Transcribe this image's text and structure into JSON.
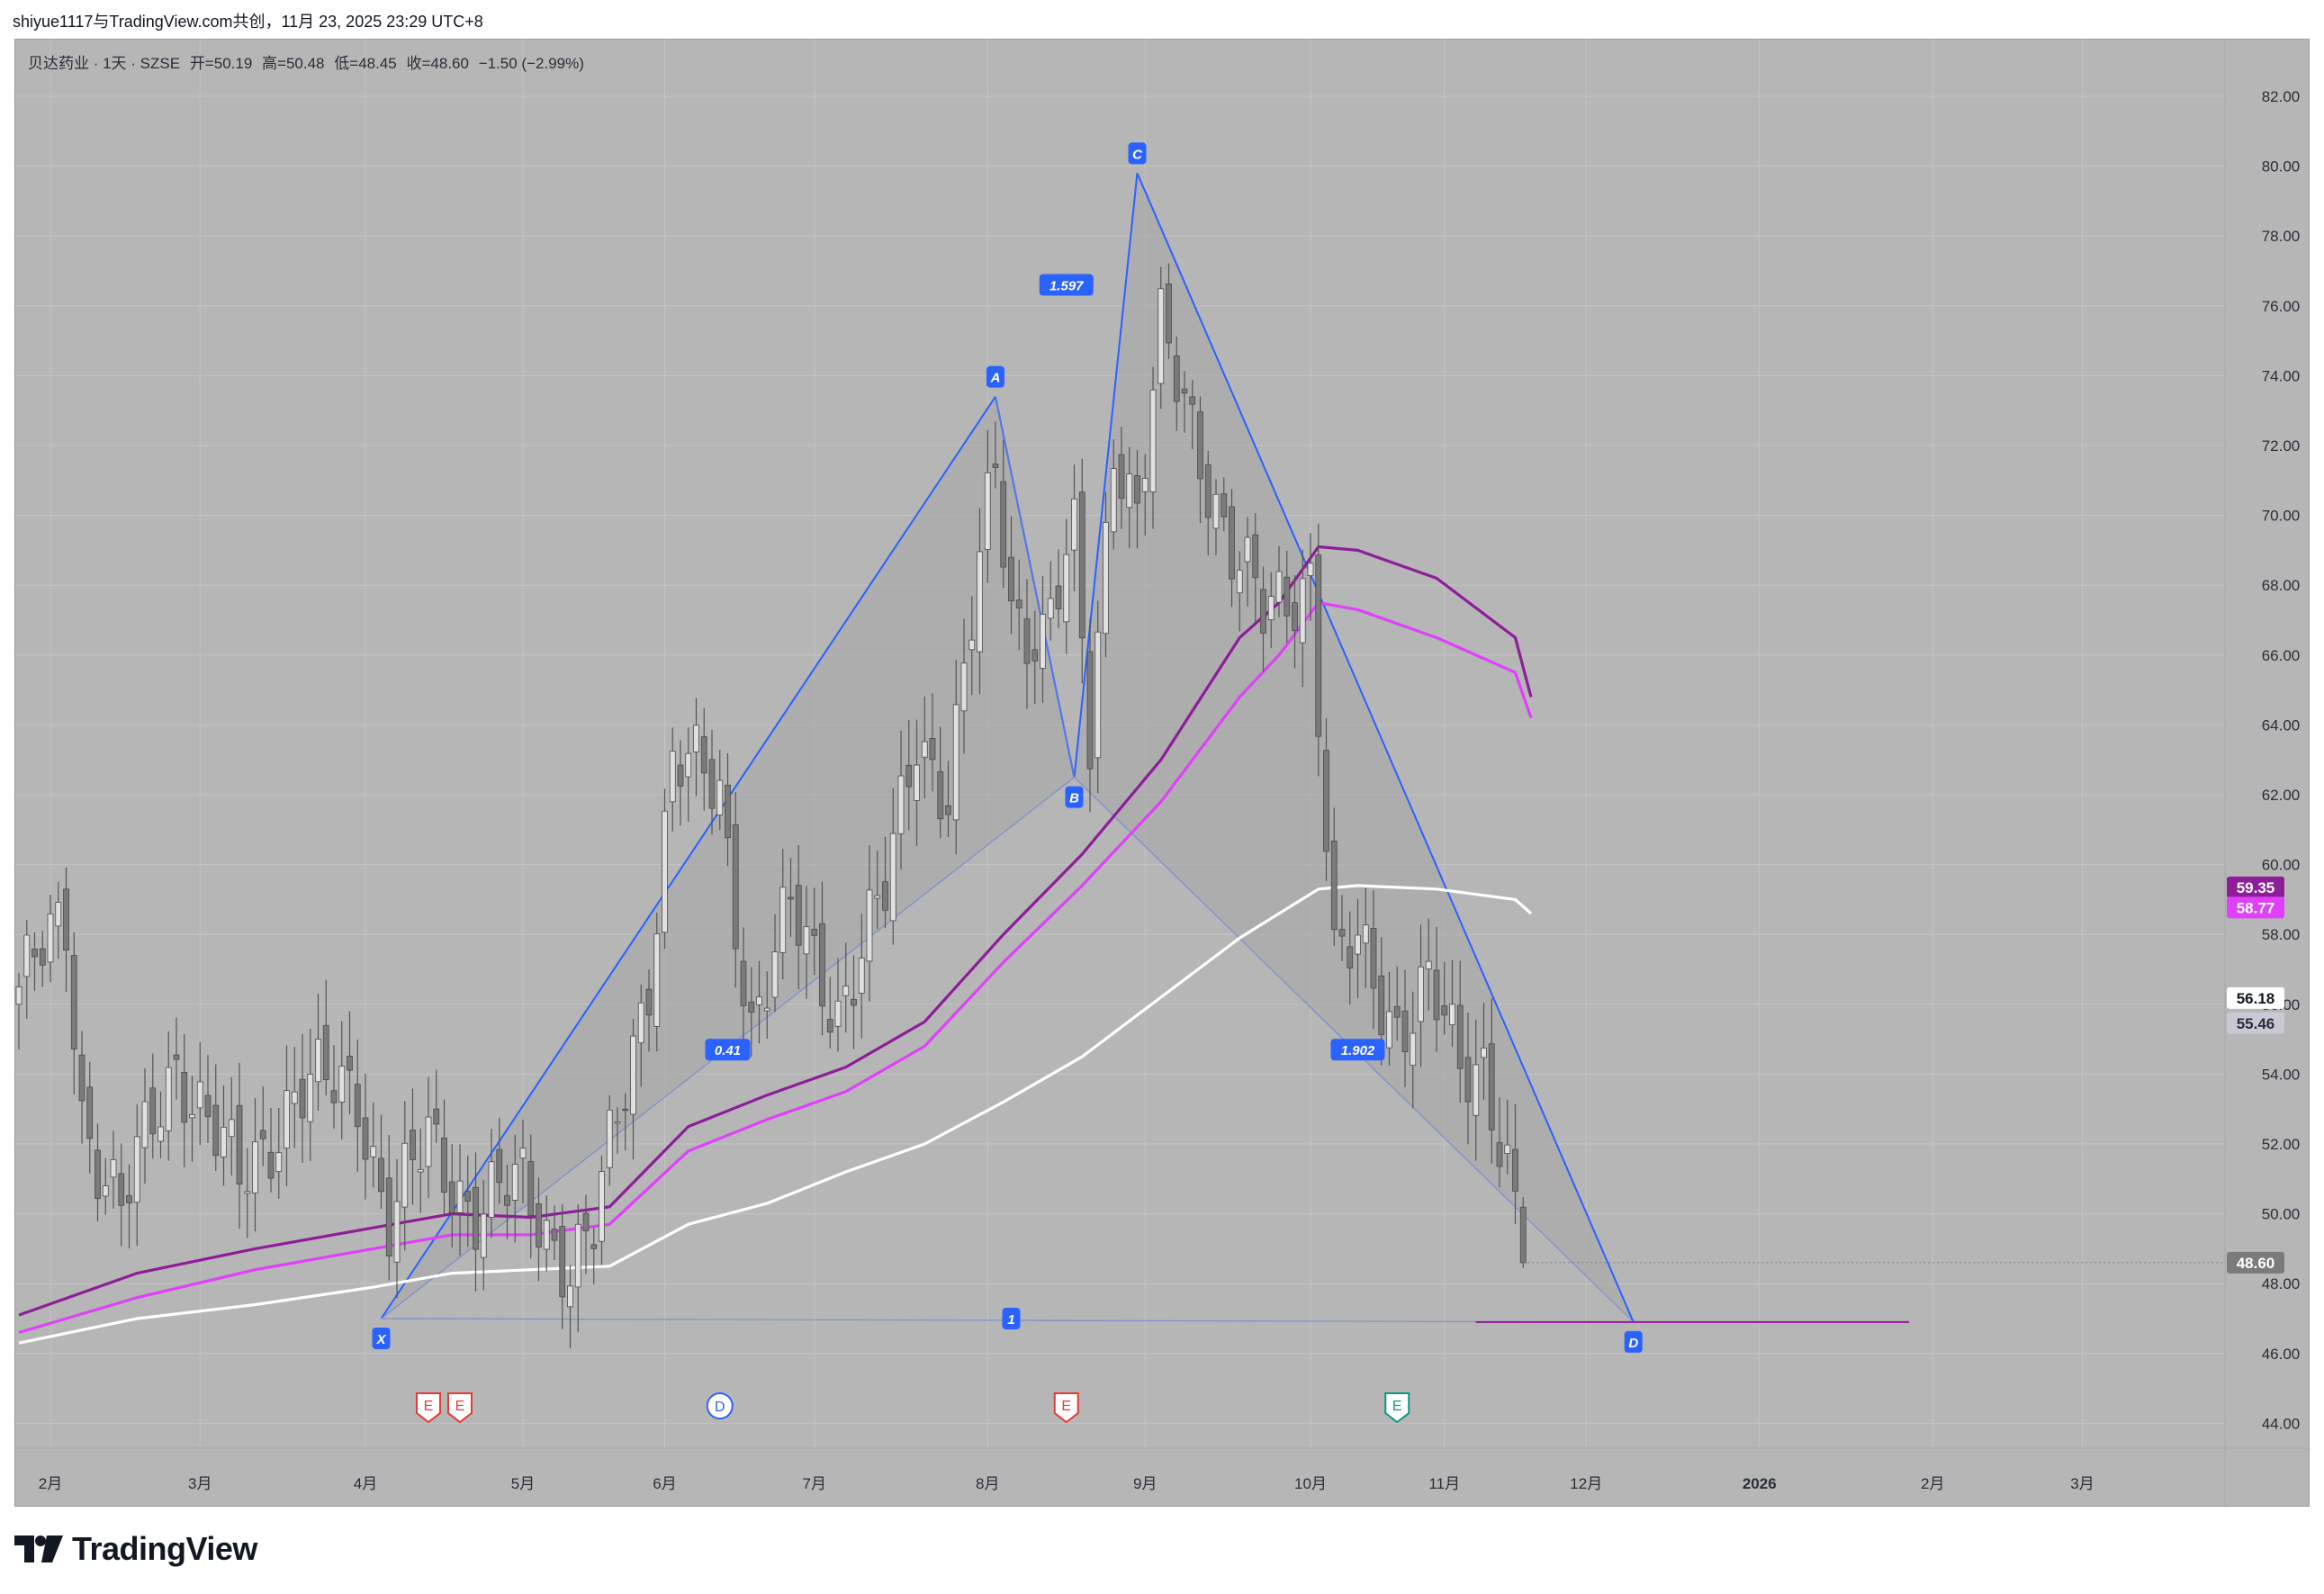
{
  "caption": "shiyue1117与TradingView.com共创，11月 23, 2025 23:29 UTC+8",
  "legend": {
    "symbol": "贝达药业 · 1天 · SZSE",
    "open_label": "开=",
    "open": "50.19",
    "high_label": "高=",
    "high": "50.48",
    "low_label": "低=",
    "low": "48.45",
    "close_label": "收=",
    "close": "48.60",
    "change": "−1.50 (−2.99%)"
  },
  "brand": {
    "name": "TradingView",
    "logo_icon": "tradingview-logo-icon"
  },
  "colors": {
    "background": "#b6b6b6",
    "pattern_line": "#2962ff",
    "pattern_fill": "#a6a6a6",
    "ma_dark": "#8e1d9a",
    "ma_pink": "#e040fb",
    "ma_white": "#ffffff",
    "candle_up": "#e0e0e0",
    "candle_down": "#7a7a7a",
    "wick": "#555555"
  },
  "chart_data": {
    "type": "candlestick",
    "y_axis": {
      "min": 43.0,
      "max": 83.0,
      "position": "right",
      "ticks": [
        "44.00",
        "46.00",
        "48.00",
        "50.00",
        "52.00",
        "54.00",
        "56.00",
        "58.00",
        "60.00",
        "62.00",
        "64.00",
        "66.00",
        "68.00",
        "70.00",
        "72.00",
        "74.00",
        "76.00",
        "78.00",
        "80.00",
        "82.00"
      ]
    },
    "x_axis": {
      "labels": [
        {
          "text": "2月",
          "idx": 4
        },
        {
          "text": "3月",
          "idx": 23
        },
        {
          "text": "4月",
          "idx": 44
        },
        {
          "text": "5月",
          "idx": 64
        },
        {
          "text": "6月",
          "idx": 82
        },
        {
          "text": "7月",
          "idx": 101
        },
        {
          "text": "8月",
          "idx": 123
        },
        {
          "text": "9月",
          "idx": 143
        },
        {
          "text": "10月",
          "idx": 164
        },
        {
          "text": "11月",
          "idx": 181
        },
        {
          "text": "12月",
          "idx": 199
        },
        {
          "text": "2026",
          "idx": 221
        },
        {
          "text": "2月",
          "idx": 243
        },
        {
          "text": "3月",
          "idx": 262
        }
      ],
      "max_idx": 275
    },
    "grid": true,
    "ohlc_seed": {
      "count": 192,
      "anchors": [
        {
          "idx": 0,
          "close": 56.5
        },
        {
          "idx": 6,
          "close": 58.2
        },
        {
          "idx": 8,
          "close": 53.0
        },
        {
          "idx": 13,
          "close": 50.0
        },
        {
          "idx": 20,
          "close": 54.5
        },
        {
          "idx": 28,
          "close": 50.8
        },
        {
          "idx": 35,
          "close": 53.5
        },
        {
          "idx": 43,
          "close": 53.6
        },
        {
          "idx": 47,
          "close": 49.8
        },
        {
          "idx": 52,
          "close": 52.0
        },
        {
          "idx": 58,
          "close": 50.2
        },
        {
          "idx": 64,
          "close": 50.7
        },
        {
          "idx": 70,
          "close": 48.6
        },
        {
          "idx": 73,
          "close": 49.4
        },
        {
          "idx": 80,
          "close": 57.0
        },
        {
          "idx": 83,
          "close": 63.0
        },
        {
          "idx": 89,
          "close": 62.0
        },
        {
          "idx": 93,
          "close": 55.5
        },
        {
          "idx": 98,
          "close": 58.5
        },
        {
          "idx": 104,
          "close": 56.0
        },
        {
          "idx": 110,
          "close": 59.0
        },
        {
          "idx": 114,
          "close": 64.0
        },
        {
          "idx": 118,
          "close": 62.0
        },
        {
          "idx": 124,
          "close": 71.5
        },
        {
          "idx": 126,
          "close": 67.5
        },
        {
          "idx": 130,
          "close": 66.5
        },
        {
          "idx": 134,
          "close": 69.0
        },
        {
          "idx": 136,
          "close": 63.5
        },
        {
          "idx": 139,
          "close": 72.5
        },
        {
          "idx": 142,
          "close": 70.0
        },
        {
          "idx": 145,
          "close": 75.0
        },
        {
          "idx": 150,
          "close": 72.0
        },
        {
          "idx": 154,
          "close": 69.0
        },
        {
          "idx": 158,
          "close": 67.0
        },
        {
          "idx": 164,
          "close": 68.5
        },
        {
          "idx": 167,
          "close": 57.0
        },
        {
          "idx": 170,
          "close": 57.5
        },
        {
          "idx": 175,
          "close": 55.5
        },
        {
          "idx": 179,
          "close": 56.5
        },
        {
          "idx": 183,
          "close": 54.0
        },
        {
          "idx": 186,
          "close": 54.5
        },
        {
          "idx": 189,
          "close": 51.5
        },
        {
          "idx": 191,
          "close": 48.6
        }
      ]
    },
    "moving_averages": [
      {
        "color": "#8e1d9a",
        "value_label": "59.35",
        "points": [
          [
            0,
            47.1
          ],
          [
            15,
            48.3
          ],
          [
            30,
            49.0
          ],
          [
            45,
            49.6
          ],
          [
            55,
            50.0
          ],
          [
            65,
            49.9
          ],
          [
            75,
            50.2
          ],
          [
            85,
            52.5
          ],
          [
            95,
            53.4
          ],
          [
            105,
            54.2
          ],
          [
            115,
            55.5
          ],
          [
            125,
            58.0
          ],
          [
            135,
            60.3
          ],
          [
            145,
            63.0
          ],
          [
            155,
            66.5
          ],
          [
            160,
            67.5
          ],
          [
            165,
            69.1
          ],
          [
            170,
            69.0
          ],
          [
            180,
            68.2
          ],
          [
            190,
            66.5
          ],
          [
            192,
            64.8
          ]
        ]
      },
      {
        "color": "#e040fb",
        "value_label": "58.77",
        "points": [
          [
            0,
            46.6
          ],
          [
            15,
            47.6
          ],
          [
            30,
            48.4
          ],
          [
            45,
            49.0
          ],
          [
            55,
            49.4
          ],
          [
            65,
            49.4
          ],
          [
            75,
            49.7
          ],
          [
            85,
            51.8
          ],
          [
            95,
            52.7
          ],
          [
            105,
            53.5
          ],
          [
            115,
            54.8
          ],
          [
            125,
            57.2
          ],
          [
            135,
            59.4
          ],
          [
            145,
            61.8
          ],
          [
            155,
            64.8
          ],
          [
            160,
            66.0
          ],
          [
            165,
            67.5
          ],
          [
            170,
            67.3
          ],
          [
            180,
            66.5
          ],
          [
            190,
            65.5
          ],
          [
            192,
            64.2
          ]
        ]
      },
      {
        "color": "#ffffff",
        "value_label": "56.18",
        "points": [
          [
            0,
            46.3
          ],
          [
            15,
            47.0
          ],
          [
            30,
            47.4
          ],
          [
            45,
            47.9
          ],
          [
            55,
            48.3
          ],
          [
            65,
            48.4
          ],
          [
            75,
            48.5
          ],
          [
            85,
            49.7
          ],
          [
            95,
            50.3
          ],
          [
            105,
            51.2
          ],
          [
            115,
            52.0
          ],
          [
            125,
            53.2
          ],
          [
            135,
            54.5
          ],
          [
            145,
            56.2
          ],
          [
            155,
            57.9
          ],
          [
            165,
            59.3
          ],
          [
            170,
            59.4
          ],
          [
            180,
            59.3
          ],
          [
            190,
            59.0
          ],
          [
            192,
            58.6
          ]
        ]
      }
    ],
    "moving_average_note": "",
    "current_price": {
      "label": "48.60",
      "value": 48.6
    },
    "extra_axis_label": {
      "label": "55.46",
      "value": 55.46
    },
    "harmonic_pattern": {
      "points": [
        {
          "label": "X",
          "idx": 46,
          "price": 47.0
        },
        {
          "label": "A",
          "idx": 124,
          "price": 73.4
        },
        {
          "label": "B",
          "idx": 134,
          "price": 62.5
        },
        {
          "label": "C",
          "idx": 142,
          "price": 79.8
        },
        {
          "label": "D",
          "idx": 205,
          "price": 46.9
        }
      ],
      "ratios": [
        {
          "label": "0.41",
          "idx": 90,
          "price": 54.7
        },
        {
          "label": "1.597",
          "idx": 133,
          "price": 76.6
        },
        {
          "label": "1.902",
          "idx": 170,
          "price": 54.7
        },
        {
          "label": "1",
          "idx": 126,
          "price": 47.0
        }
      ]
    },
    "target_line": {
      "from_idx": 185,
      "to_idx": 240,
      "price": 46.9,
      "color": "#8e1d9a"
    },
    "events": [
      {
        "label": "E",
        "idx": 52,
        "type": "earnings"
      },
      {
        "label": "E",
        "idx": 56,
        "type": "earnings"
      },
      {
        "label": "D",
        "idx": 89,
        "type": "dividend"
      },
      {
        "label": "E",
        "idx": 133,
        "type": "earnings"
      },
      {
        "label": "E",
        "idx": 175,
        "type": "earnings-green"
      }
    ]
  }
}
